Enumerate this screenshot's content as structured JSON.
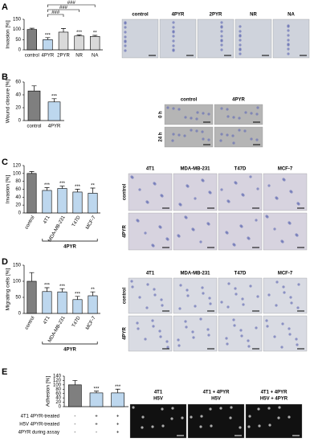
{
  "chart_data": [
    {
      "type": "bar",
      "panel": "A",
      "ylabel": "Invasion [%]",
      "categories": [
        "control",
        "4PYR",
        "2PYR",
        "NR",
        "NA"
      ],
      "values": [
        100,
        50,
        87,
        68,
        66
      ],
      "errors": [
        6,
        10,
        18,
        5,
        5
      ],
      "colors": [
        "#7f7f7f",
        "#bdd7ee",
        "#d9d9d9",
        "#d9d9d9",
        "#d9d9d9"
      ],
      "ylim": [
        0,
        150
      ],
      "yticks": [
        0,
        50,
        100,
        150
      ],
      "annotations": [
        null,
        "***",
        null,
        "***",
        "**"
      ],
      "comparisons": [
        {
          "label": "###",
          "from": "4PYR",
          "to": "NA"
        },
        {
          "label": "###",
          "from": "4PYR",
          "to": "NR"
        },
        {
          "label": "###",
          "from": "4PYR",
          "to": "2PYR"
        }
      ],
      "image_columns": [
        "control",
        "4PYR",
        "2PYR",
        "NR",
        "NA"
      ]
    },
    {
      "type": "bar",
      "panel": "B",
      "ylabel": "Wound closure [%]",
      "categories": [
        "control",
        "4PYR"
      ],
      "values": [
        46,
        29
      ],
      "errors": [
        8,
        5
      ],
      "colors": [
        "#7f7f7f",
        "#bdd7ee"
      ],
      "ylim": [
        0,
        60
      ],
      "yticks": [
        0,
        20,
        40,
        60
      ],
      "annotations": [
        null,
        "***"
      ],
      "image_columns": [
        "control",
        "4PYR"
      ],
      "image_rows": [
        "0 h",
        "24 h"
      ]
    },
    {
      "type": "bar",
      "panel": "C",
      "ylabel": "Invasion [%]",
      "categories": [
        "control",
        "4T1",
        "MDA-MB-231",
        "T47D",
        "MCF-7"
      ],
      "values": [
        100,
        57,
        62,
        53,
        50
      ],
      "errors": [
        5,
        7,
        6,
        7,
        13
      ],
      "colors": [
        "#7f7f7f",
        "#bdd7ee",
        "#bdd7ee",
        "#bdd7ee",
        "#bdd7ee"
      ],
      "ylim": [
        0,
        120
      ],
      "yticks": [
        0,
        20,
        40,
        60,
        80,
        100,
        120
      ],
      "annotations": [
        null,
        "***",
        "***",
        "***",
        "**"
      ],
      "group_label": "4PYR",
      "image_columns": [
        "4T1",
        "MDA-MB-231",
        "T47D",
        "MCF-7"
      ],
      "image_rows": [
        "control",
        "4PYR"
      ]
    },
    {
      "type": "bar",
      "panel": "D",
      "ylabel": "Migrating cells [%]",
      "categories": [
        "control",
        "4T1",
        "MDA-MB-231",
        "T47D",
        "MCF-7"
      ],
      "values": [
        100,
        68,
        67,
        43,
        55
      ],
      "errors": [
        27,
        12,
        10,
        10,
        12
      ],
      "colors": [
        "#7f7f7f",
        "#bdd7ee",
        "#bdd7ee",
        "#bdd7ee",
        "#bdd7ee"
      ],
      "ylim": [
        0,
        150
      ],
      "yticks": [
        0,
        50,
        100,
        150
      ],
      "annotations": [
        null,
        "***",
        "***",
        "***",
        "**"
      ],
      "group_label": "4PYR",
      "image_columns": [
        "4T1",
        "MDA-MB-231",
        "T47D",
        "MCF-7"
      ],
      "image_rows": [
        "control",
        "4PYR"
      ]
    },
    {
      "type": "bar",
      "panel": "E",
      "ylabel": "Adhesion [%]",
      "categories": [
        null,
        null,
        null
      ],
      "values": [
        100,
        63,
        63
      ],
      "errors": [
        20,
        8,
        17
      ],
      "colors": [
        "#7f7f7f",
        "#bdd7ee",
        "#bdd7ee"
      ],
      "ylim": [
        0,
        140
      ],
      "yticks": [
        0,
        20,
        40,
        60,
        80,
        100,
        120,
        140
      ],
      "annotations": [
        null,
        "***",
        "***"
      ],
      "conditions": [
        {
          "label": "4T1 4PYR-treated",
          "marks": [
            "-",
            "+",
            "+"
          ]
        },
        {
          "label": "H5V 4PYR-treated",
          "marks": [
            "-",
            "+",
            "+"
          ]
        },
        {
          "label": "4PYR during assay",
          "marks": [
            "-",
            "-",
            "+"
          ]
        }
      ],
      "image_columns": [
        [
          "4T1",
          "H5V"
        ],
        [
          "4T1 + 4PYR",
          "H5V"
        ],
        [
          "4T1 + 4PYR",
          "H5V + 4PYR"
        ]
      ]
    }
  ]
}
